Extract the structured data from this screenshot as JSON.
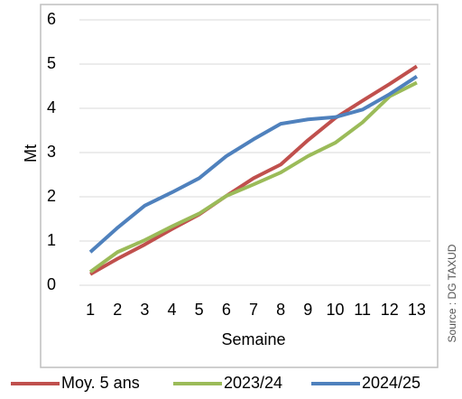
{
  "chart_data": {
    "type": "line",
    "source": "Source : DG TAXUD",
    "x_label": "Semaine",
    "y_label": "Mt",
    "categories": [
      "1",
      "2",
      "3",
      "4",
      "5",
      "6",
      "7",
      "8",
      "9",
      "10",
      "11",
      "12",
      "13"
    ],
    "series": [
      {
        "name": "Moy. 5 ans",
        "color": "#c0504d",
        "values": [
          0.25,
          0.6,
          0.92,
          1.27,
          1.6,
          2.02,
          2.42,
          2.73,
          3.28,
          3.78,
          4.17,
          4.55,
          4.95
        ]
      },
      {
        "name": "2023/24",
        "color": "#9bbb59",
        "values": [
          0.3,
          0.75,
          1.02,
          1.33,
          1.62,
          2.02,
          2.28,
          2.55,
          2.92,
          3.22,
          3.68,
          4.27,
          4.58
        ]
      },
      {
        "name": "2024/25",
        "color": "#4f81bd",
        "values": [
          0.75,
          1.3,
          1.8,
          2.1,
          2.42,
          2.92,
          3.3,
          3.65,
          3.75,
          3.8,
          3.97,
          4.32,
          4.72
        ]
      }
    ],
    "ylim": [
      0,
      6
    ],
    "yticks": [
      0,
      1,
      2,
      3,
      4,
      5,
      6
    ],
    "grid": true
  }
}
